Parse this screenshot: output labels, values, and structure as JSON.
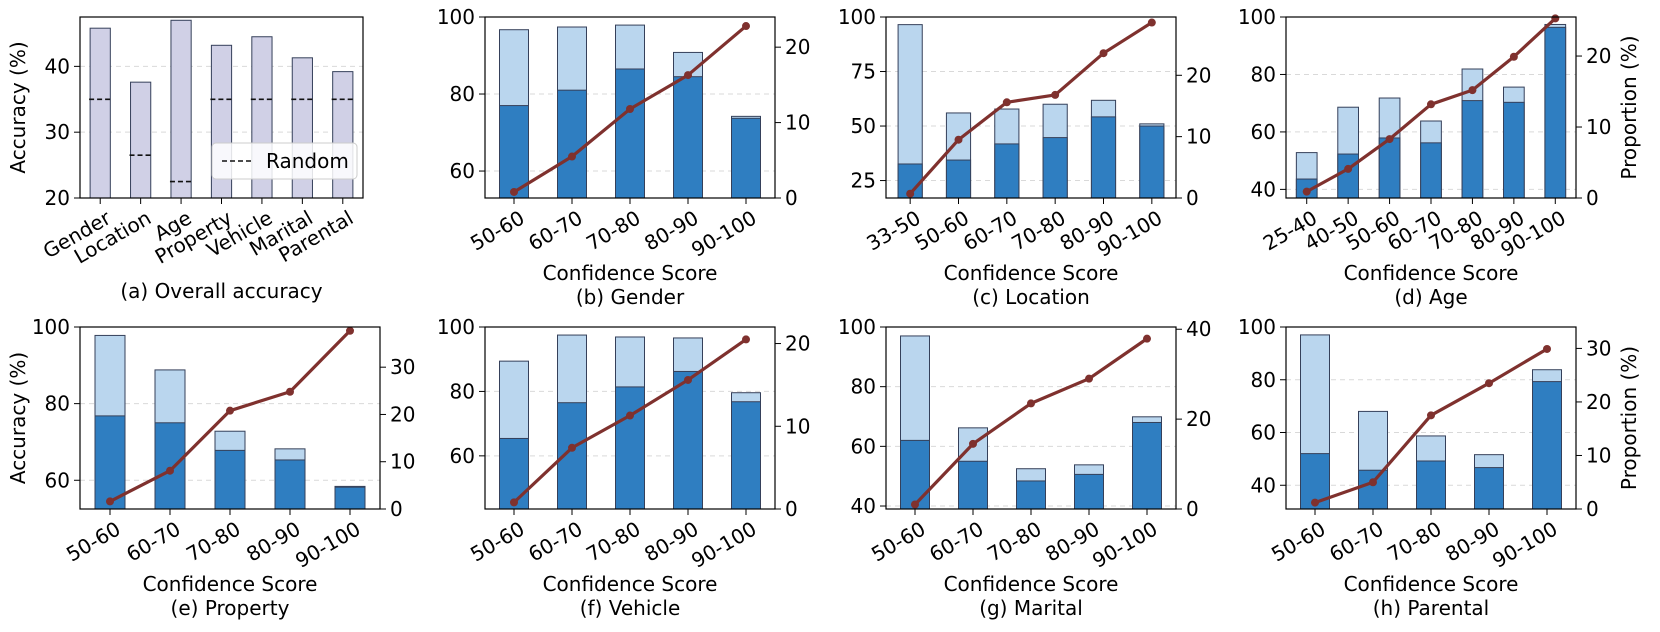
{
  "colors": {
    "bar_light": "#bad6ee",
    "bar_dark": "#2f7ec1",
    "bar_overall": "#d0d0e6",
    "line": "#7f312e",
    "edge": "#35405a",
    "grid": "#d9d9d9"
  },
  "chart_data": [
    {
      "id": "a",
      "type": "bar",
      "caption": "(a) Overall accuracy",
      "xlabel": "",
      "ylabel": "Accuracy (%)",
      "categories": [
        "Gender",
        "Location",
        "Age",
        "Property",
        "Vehicle",
        "Marital",
        "Parental"
      ],
      "values": [
        45.8,
        37.6,
        47.0,
        43.2,
        44.5,
        41.3,
        39.2
      ],
      "random": [
        35,
        26.5,
        22.5,
        35,
        35,
        35,
        35
      ],
      "ylim": [
        20,
        47.5
      ],
      "yticks": [
        20,
        30,
        40
      ],
      "legend": {
        "label": "Random",
        "placement": "lower-right"
      }
    },
    {
      "id": "b",
      "type": "bar+line",
      "caption": "(b) Gender",
      "xlabel": "Confidence Score",
      "ylabel": "",
      "ylabel_right": "",
      "categories": [
        "50-60",
        "60-70",
        "70-80",
        "80-90",
        "90-100"
      ],
      "series": [
        {
          "name": "light",
          "values": [
            96.7,
            97.4,
            97.9,
            90.8,
            74.2
          ]
        },
        {
          "name": "dark",
          "values": [
            77.0,
            81.0,
            86.5,
            84.5,
            73.7
          ]
        },
        {
          "name": "proportion",
          "values": [
            0.8,
            5.5,
            11.8,
            16.3,
            22.8
          ]
        }
      ],
      "ylim": [
        53,
        100
      ],
      "yticks": [
        60,
        80,
        100
      ],
      "y2lim": [
        0,
        24
      ],
      "y2ticks": [
        0,
        10,
        20
      ]
    },
    {
      "id": "c",
      "type": "bar+line",
      "caption": "(c) Location",
      "xlabel": "Confidence Score",
      "ylabel": "",
      "ylabel_right": "",
      "categories": [
        "33-50",
        "50-60",
        "60-70",
        "70-80",
        "80-90",
        "90-100"
      ],
      "series": [
        {
          "name": "light",
          "values": [
            96.5,
            56.0,
            57.8,
            60.0,
            61.8,
            51.0
          ]
        },
        {
          "name": "dark",
          "values": [
            32.6,
            34.4,
            41.8,
            44.7,
            54.2,
            50.0
          ]
        },
        {
          "name": "proportion",
          "values": [
            0.7,
            9.5,
            15.6,
            16.8,
            23.6,
            28.6
          ]
        }
      ],
      "ylim": [
        17,
        100
      ],
      "yticks": [
        25,
        50,
        75,
        100
      ],
      "y2lim": [
        0,
        29.5
      ],
      "y2ticks": [
        0,
        10,
        20
      ]
    },
    {
      "id": "d",
      "type": "bar+line",
      "caption": "(d) Age",
      "xlabel": "Confidence Score",
      "ylabel": "",
      "ylabel_right": "Proportion (%)",
      "categories": [
        "25-40",
        "40-50",
        "50-60",
        "60-70",
        "70-80",
        "80-90",
        "90-100"
      ],
      "series": [
        {
          "name": "light",
          "values": [
            52.8,
            68.6,
            71.8,
            63.8,
            81.9,
            75.6,
            97.4
          ]
        },
        {
          "name": "dark",
          "values": [
            43.6,
            52.3,
            57.9,
            56.2,
            70.9,
            70.3,
            96.4
          ]
        },
        {
          "name": "proportion",
          "values": [
            0.9,
            4.1,
            8.3,
            13.2,
            15.2,
            19.9,
            25.3
          ]
        }
      ],
      "ylim": [
        37,
        100
      ],
      "yticks": [
        40,
        60,
        80,
        100
      ],
      "y2lim": [
        0,
        25.5
      ],
      "y2ticks": [
        0,
        10,
        20
      ]
    },
    {
      "id": "e",
      "type": "bar+line",
      "caption": "(e) Property",
      "xlabel": "Confidence Score",
      "ylabel": "Accuracy (%)",
      "ylabel_right": "",
      "categories": [
        "50-60",
        "60-70",
        "70-80",
        "80-90",
        "90-100"
      ],
      "series": [
        {
          "name": "light",
          "values": [
            97.8,
            88.8,
            72.8,
            68.2,
            58.4
          ]
        },
        {
          "name": "dark",
          "values": [
            76.8,
            75.0,
            67.8,
            65.3,
            58.2
          ]
        },
        {
          "name": "proportion",
          "values": [
            1.6,
            8.1,
            20.8,
            24.8,
            37.7
          ]
        }
      ],
      "ylim": [
        52.5,
        100
      ],
      "yticks": [
        60,
        80,
        100
      ],
      "y2lim": [
        0,
        38.5
      ],
      "y2ticks": [
        0,
        10,
        20,
        30
      ]
    },
    {
      "id": "f",
      "type": "bar+line",
      "caption": "(f) Vehicle",
      "xlabel": "Confidence Score",
      "ylabel": "",
      "ylabel_right": "",
      "categories": [
        "50-60",
        "60-70",
        "70-80",
        "80-90",
        "90-100"
      ],
      "series": [
        {
          "name": "light",
          "values": [
            89.4,
            97.5,
            96.9,
            96.6,
            79.6
          ]
        },
        {
          "name": "dark",
          "values": [
            65.4,
            76.5,
            81.4,
            86.2,
            76.8
          ]
        },
        {
          "name": "proportion",
          "values": [
            0.8,
            7.4,
            11.3,
            15.6,
            20.5
          ]
        }
      ],
      "ylim": [
        43.5,
        100
      ],
      "yticks": [
        60,
        80,
        100
      ],
      "y2lim": [
        0,
        22
      ],
      "y2ticks": [
        0,
        10,
        20
      ]
    },
    {
      "id": "g",
      "type": "bar+line",
      "caption": "(g) Marital",
      "xlabel": "Confidence Score",
      "ylabel": "",
      "ylabel_right": "",
      "categories": [
        "50-60",
        "60-70",
        "70-80",
        "80-90",
        "90-100"
      ],
      "series": [
        {
          "name": "light",
          "values": [
            97.0,
            66.2,
            52.5,
            53.8,
            69.9
          ]
        },
        {
          "name": "dark",
          "values": [
            62.0,
            55.0,
            48.4,
            50.6,
            68.0
          ]
        },
        {
          "name": "proportion",
          "values": [
            1.0,
            14.5,
            23.5,
            29.0,
            37.9
          ]
        }
      ],
      "ylim": [
        39,
        100
      ],
      "yticks": [
        40,
        60,
        80,
        100
      ],
      "y2lim": [
        0,
        40.5
      ],
      "y2ticks": [
        0,
        20,
        40
      ]
    },
    {
      "id": "h",
      "type": "bar+line",
      "caption": "(h) Parental",
      "xlabel": "Confidence Score",
      "ylabel": "",
      "ylabel_right": "Proportion (%)",
      "categories": [
        "50-60",
        "60-70",
        "70-80",
        "80-90",
        "90-100"
      ],
      "series": [
        {
          "name": "light",
          "values": [
            97.0,
            68.0,
            58.7,
            51.6,
            83.8
          ]
        },
        {
          "name": "dark",
          "values": [
            52.0,
            45.7,
            49.2,
            46.7,
            79.3
          ]
        },
        {
          "name": "proportion",
          "values": [
            1.2,
            5.0,
            17.5,
            23.5,
            29.9
          ]
        }
      ],
      "ylim": [
        31,
        100
      ],
      "yticks": [
        40,
        60,
        80,
        100
      ],
      "y2lim": [
        0,
        34
      ],
      "y2ticks": [
        0,
        10,
        20,
        30
      ]
    }
  ]
}
